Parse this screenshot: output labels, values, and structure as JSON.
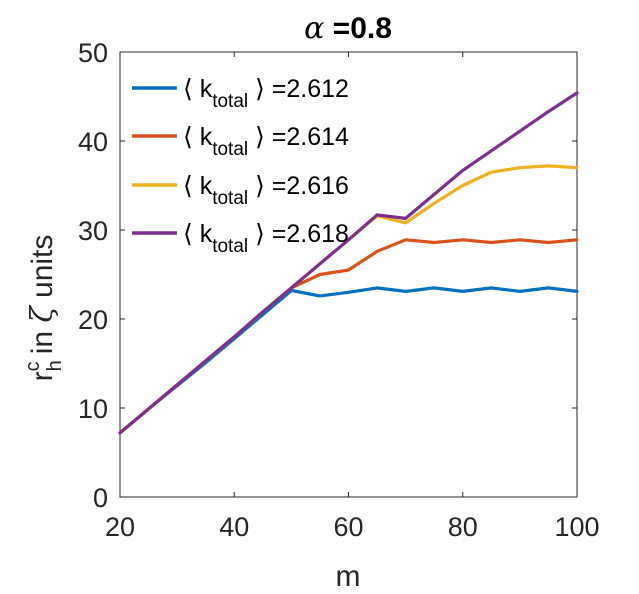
{
  "chart_data": {
    "type": "line",
    "title_symbol": "α",
    "title_text": " =0.8",
    "xlabel": "m",
    "ylabel": {
      "base": "r",
      "superscript": "c",
      "subscript": "h",
      "rest_a": "in ",
      "symbol": "ζ",
      "rest_b": " units"
    },
    "xlim": [
      20,
      100
    ],
    "ylim": [
      0,
      50
    ],
    "xticks": [
      20,
      40,
      60,
      80,
      100
    ],
    "yticks": [
      0,
      10,
      20,
      30,
      40,
      50
    ],
    "x": [
      20,
      25,
      30,
      35,
      40,
      45,
      50,
      55,
      60,
      65,
      70,
      75,
      80,
      85,
      90,
      95,
      100
    ],
    "series": [
      {
        "name": "2.612",
        "legend_prefix": "⟨ k",
        "legend_sub": "total",
        "legend_suffix": " ⟩ =2.612",
        "color": "#0072BD",
        "values": [
          7.2,
          9.9,
          12.5,
          15.1,
          17.8,
          20.5,
          23.2,
          22.6,
          23.0,
          23.5,
          23.1,
          23.5,
          23.1,
          23.5,
          23.1,
          23.5,
          23.1
        ]
      },
      {
        "name": "2.614",
        "legend_prefix": "⟨ k",
        "legend_sub": "total",
        "legend_suffix": " ⟩ =2.614",
        "color": "#D95319",
        "values": [
          7.2,
          9.9,
          12.6,
          15.3,
          18.0,
          20.8,
          23.5,
          25.0,
          25.5,
          27.6,
          28.9,
          28.6,
          28.9,
          28.6,
          28.9,
          28.6,
          28.9
        ]
      },
      {
        "name": "2.616",
        "legend_prefix": "⟨ k",
        "legend_sub": "total",
        "legend_suffix": " ⟩ =2.616",
        "color": "#EDB120",
        "values": [
          7.2,
          9.9,
          12.6,
          15.3,
          18.0,
          20.8,
          23.5,
          26.2,
          28.9,
          31.6,
          30.8,
          33.0,
          35.0,
          36.5,
          37.0,
          37.2,
          37.0
        ]
      },
      {
        "name": "2.618",
        "legend_prefix": "⟨ k",
        "legend_sub": "total",
        "legend_suffix": " ⟩ =2.618",
        "color": "#7E2F8E",
        "values": [
          7.2,
          9.9,
          12.6,
          15.3,
          18.0,
          20.8,
          23.5,
          26.2,
          28.9,
          31.7,
          31.3,
          34.0,
          36.7,
          38.9,
          41.1,
          43.3,
          45.4
        ]
      }
    ]
  }
}
